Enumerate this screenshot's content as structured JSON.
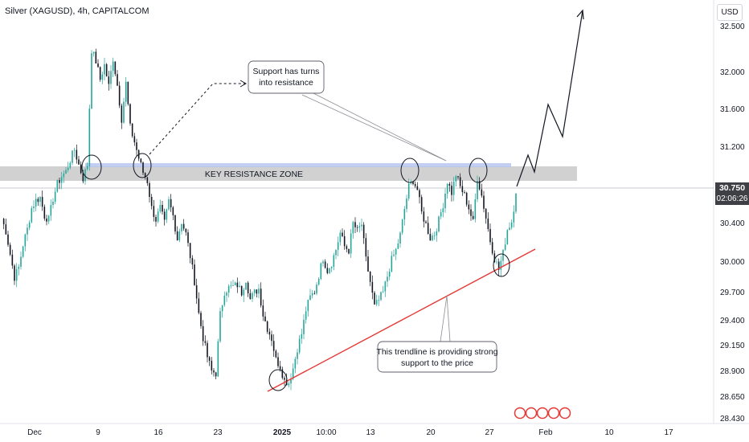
{
  "header": {
    "title": "Silver (XAGUSD), 4h, CAPITALCOM"
  },
  "price_axis": {
    "unit": "USD",
    "labels": [
      "32.500",
      "32.000",
      "31.600",
      "31.200",
      "30.400",
      "30.000",
      "29.700",
      "29.400",
      "29.150",
      "28.900",
      "28.650",
      "28.430"
    ],
    "last_price": "30.750",
    "countdown": "02:06:26"
  },
  "time_axis": {
    "labels": [
      "Dec",
      "9",
      "16",
      "23",
      "2025",
      "10:00",
      "13",
      "20",
      "27",
      "Feb",
      "10",
      "17"
    ]
  },
  "annotations": {
    "zone_label": "KEY RESISTANCE ZONE",
    "callout_top_line1": "Support has turns",
    "callout_top_line2": "into resistance",
    "callout_bottom_line1": "This trendline is providing strong",
    "callout_bottom_line2": "support to the price"
  },
  "colors": {
    "up": "#26a69a",
    "down": "#131722",
    "trendline": "#e53935",
    "zone": "#c8c8c8",
    "zone_top": "#b3c3f0",
    "price_tag": "#3f3f46"
  },
  "chart_data": {
    "type": "candlestick",
    "title": "Silver (XAGUSD), 4h, CAPITALCOM",
    "ylabel": "USD",
    "ylim": [
      28.43,
      32.7
    ],
    "x_tick_labels": [
      "Dec",
      "9",
      "16",
      "23",
      "2025",
      "10:00",
      "13",
      "20",
      "27",
      "Feb",
      "10",
      "17"
    ],
    "last_price": 30.75,
    "key_resistance_zone": [
      30.82,
      30.98
    ],
    "trendline": {
      "from": 28.73,
      "to": 30.13,
      "label": "This trendline is providing strong support to the price"
    },
    "projection": [
      30.75,
      31.07,
      30.91,
      31.67,
      31.26,
      32.78
    ],
    "price_path": [
      30.49,
      30.36,
      30.12,
      29.88,
      29.98,
      30.22,
      30.38,
      30.6,
      30.68,
      30.71,
      30.52,
      30.48,
      30.7,
      30.85,
      30.93,
      30.98,
      31.1,
      31.21,
      31.05,
      30.91,
      31.05,
      32.25,
      32.13,
      31.94,
      32.09,
      31.87,
      32.16,
      31.88,
      31.53,
      31.9,
      31.44,
      31.29,
      31.12,
      30.97,
      30.88,
      30.6,
      30.48,
      30.6,
      30.44,
      30.67,
      30.52,
      30.28,
      30.46,
      30.33,
      30.1,
      29.84,
      29.5,
      29.25,
      29.05,
      28.9,
      28.88,
      29.49,
      29.73,
      29.77,
      29.78,
      29.8,
      29.72,
      29.86,
      29.65,
      29.72,
      29.76,
      29.49,
      29.35,
      29.24,
      29.02,
      28.95,
      28.8,
      28.78,
      28.93,
      29.14,
      29.29,
      29.54,
      29.67,
      29.73,
      29.9,
      30.08,
      29.95,
      30.03,
      30.17,
      30.34,
      30.2,
      30.16,
      30.44,
      30.36,
      30.43,
      30.06,
      29.83,
      29.57,
      29.64,
      29.72,
      29.89,
      30.06,
      30.16,
      30.32,
      30.59,
      30.82,
      30.89,
      30.79,
      30.55,
      30.43,
      30.29,
      30.33,
      30.47,
      30.64,
      30.88,
      30.76,
      30.95,
      30.82,
      30.73,
      30.6,
      30.45,
      30.92,
      30.73,
      30.5,
      30.26,
      30.08,
      29.96,
      30.13,
      30.38,
      30.46,
      30.75
    ]
  }
}
